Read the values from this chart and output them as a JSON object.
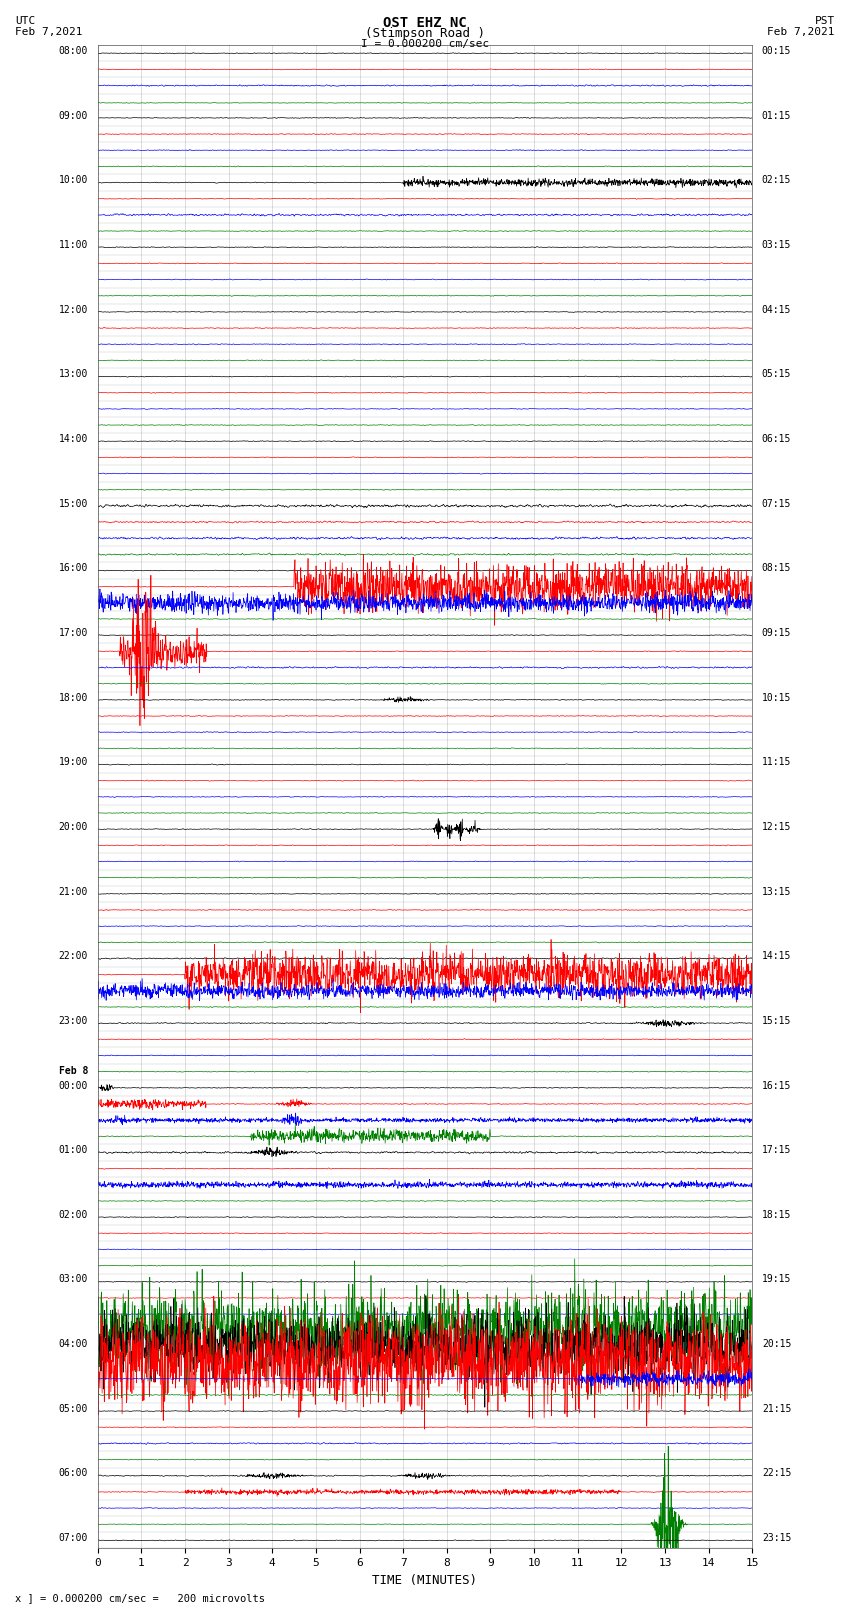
{
  "title_line1": "OST EHZ NC",
  "title_line2": "(Stimpson Road )",
  "title_line3": "I = 0.000200 cm/sec",
  "left_header1": "UTC",
  "left_header2": "Feb 7,2021",
  "right_header1": "PST",
  "right_header2": "Feb 7,2021",
  "xlabel": "TIME (MINUTES)",
  "footer": "x ] = 0.000200 cm/sec =   200 microvolts",
  "x_min": 0,
  "x_max": 15,
  "n_rows": 92,
  "colors_cycle": [
    "black",
    "red",
    "blue",
    "green"
  ],
  "background_color": "#ffffff",
  "grid_color": "#999999",
  "seed": 42,
  "utc_labels": {
    "0": "08:00",
    "4": "09:00",
    "8": "10:00",
    "12": "11:00",
    "16": "12:00",
    "20": "13:00",
    "24": "14:00",
    "28": "15:00",
    "32": "16:00",
    "36": "17:00",
    "40": "18:00",
    "44": "19:00",
    "48": "20:00",
    "52": "21:00",
    "56": "22:00",
    "60": "23:00",
    "64": "Feb 8\n00:00",
    "68": "01:00",
    "72": "02:00",
    "76": "03:00",
    "80": "04:00",
    "84": "05:00",
    "88": "06:00",
    "92": "07:00"
  },
  "pst_labels": {
    "0": "00:15",
    "4": "01:15",
    "8": "02:15",
    "12": "03:15",
    "16": "04:15",
    "20": "05:15",
    "24": "06:15",
    "28": "07:15",
    "32": "08:15",
    "36": "09:15",
    "40": "10:15",
    "44": "11:15",
    "48": "12:15",
    "52": "13:15",
    "56": "14:15",
    "60": "15:15",
    "64": "16:15",
    "68": "17:15",
    "72": "18:15",
    "76": "19:15",
    "80": "20:15",
    "84": "21:15",
    "88": "22:15",
    "92": "23:15"
  }
}
